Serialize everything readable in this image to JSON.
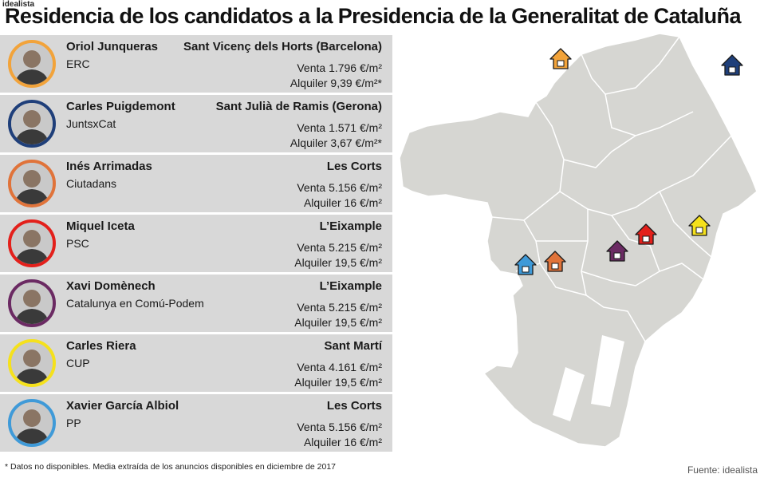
{
  "brand": "idealista",
  "title": "Residencia de los candidatos a la Presidencia de la Generalitat de Cataluña",
  "candidates": [
    {
      "name": "Oriol Junqueras",
      "party": "ERC",
      "place": "Sant Vicenç dels Horts (Barcelona)",
      "sale": "Venta 1.796 €/m²",
      "rent": "Alquiler 9,39 €/m²*",
      "color": "#f2a33a"
    },
    {
      "name": "Carles Puigdemont",
      "party": "JuntsxCat",
      "place": "Sant Julià de Ramis (Gerona)",
      "sale": "Venta 1.571 €/m²",
      "rent": "Alquiler 3,67 €/m²*",
      "color": "#1f3f7a"
    },
    {
      "name": "Inés Arrimadas",
      "party": "Ciutadans",
      "place": "Les Corts",
      "sale": "Venta 5.156 €/m²",
      "rent": "Alquiler 16 €/m²",
      "color": "#e0733a"
    },
    {
      "name": "Miquel Iceta",
      "party": "PSC",
      "place": "L’Eixample",
      "sale": "Venta 5.215 €/m²",
      "rent": "Alquiler 19,5 €/m²",
      "color": "#e3201b"
    },
    {
      "name": "Xavi Domènech",
      "party": "Catalunya en Comú-Podem",
      "place": "L’Eixample",
      "sale": "Venta 5.215 €/m²",
      "rent": "Alquiler 19,5 €/m²",
      "color": "#6b2a63"
    },
    {
      "name": "Carles Riera",
      "party": "CUP",
      "place": "Sant Martí",
      "sale": "Venta 4.161 €/m²",
      "rent": "Alquiler 19,5 €/m²",
      "color": "#f5e11c"
    },
    {
      "name": "Xavier García Albiol",
      "party": "PP",
      "place": "Les Corts",
      "sale": "Venta 5.156 €/m²",
      "rent": "Alquiler 16 €/m²",
      "color": "#3f9ad8"
    }
  ],
  "map": {
    "land_color": "#d6d6d2",
    "house_icons": [
      {
        "icon": "house-icon",
        "candidate": "Oriol Junqueras",
        "color": "#f2a33a"
      },
      {
        "icon": "house-icon",
        "candidate": "Carles Puigdemont",
        "color": "#1f3f7a"
      },
      {
        "icon": "house-icon",
        "candidate": "Inés Arrimadas",
        "color": "#e0733a"
      },
      {
        "icon": "house-icon",
        "candidate": "Miquel Iceta",
        "color": "#e3201b"
      },
      {
        "icon": "house-icon",
        "candidate": "Xavi Domènech",
        "color": "#6b2a63"
      },
      {
        "icon": "house-icon",
        "candidate": "Carles Riera",
        "color": "#f5e11c"
      },
      {
        "icon": "house-icon",
        "candidate": "Xavier García Albiol",
        "color": "#3f9ad8"
      }
    ]
  },
  "footnote": "* Datos no disponibles. Media extraída de los anuncios disponibles en diciembre de 2017",
  "source": "Fuente: idealista"
}
